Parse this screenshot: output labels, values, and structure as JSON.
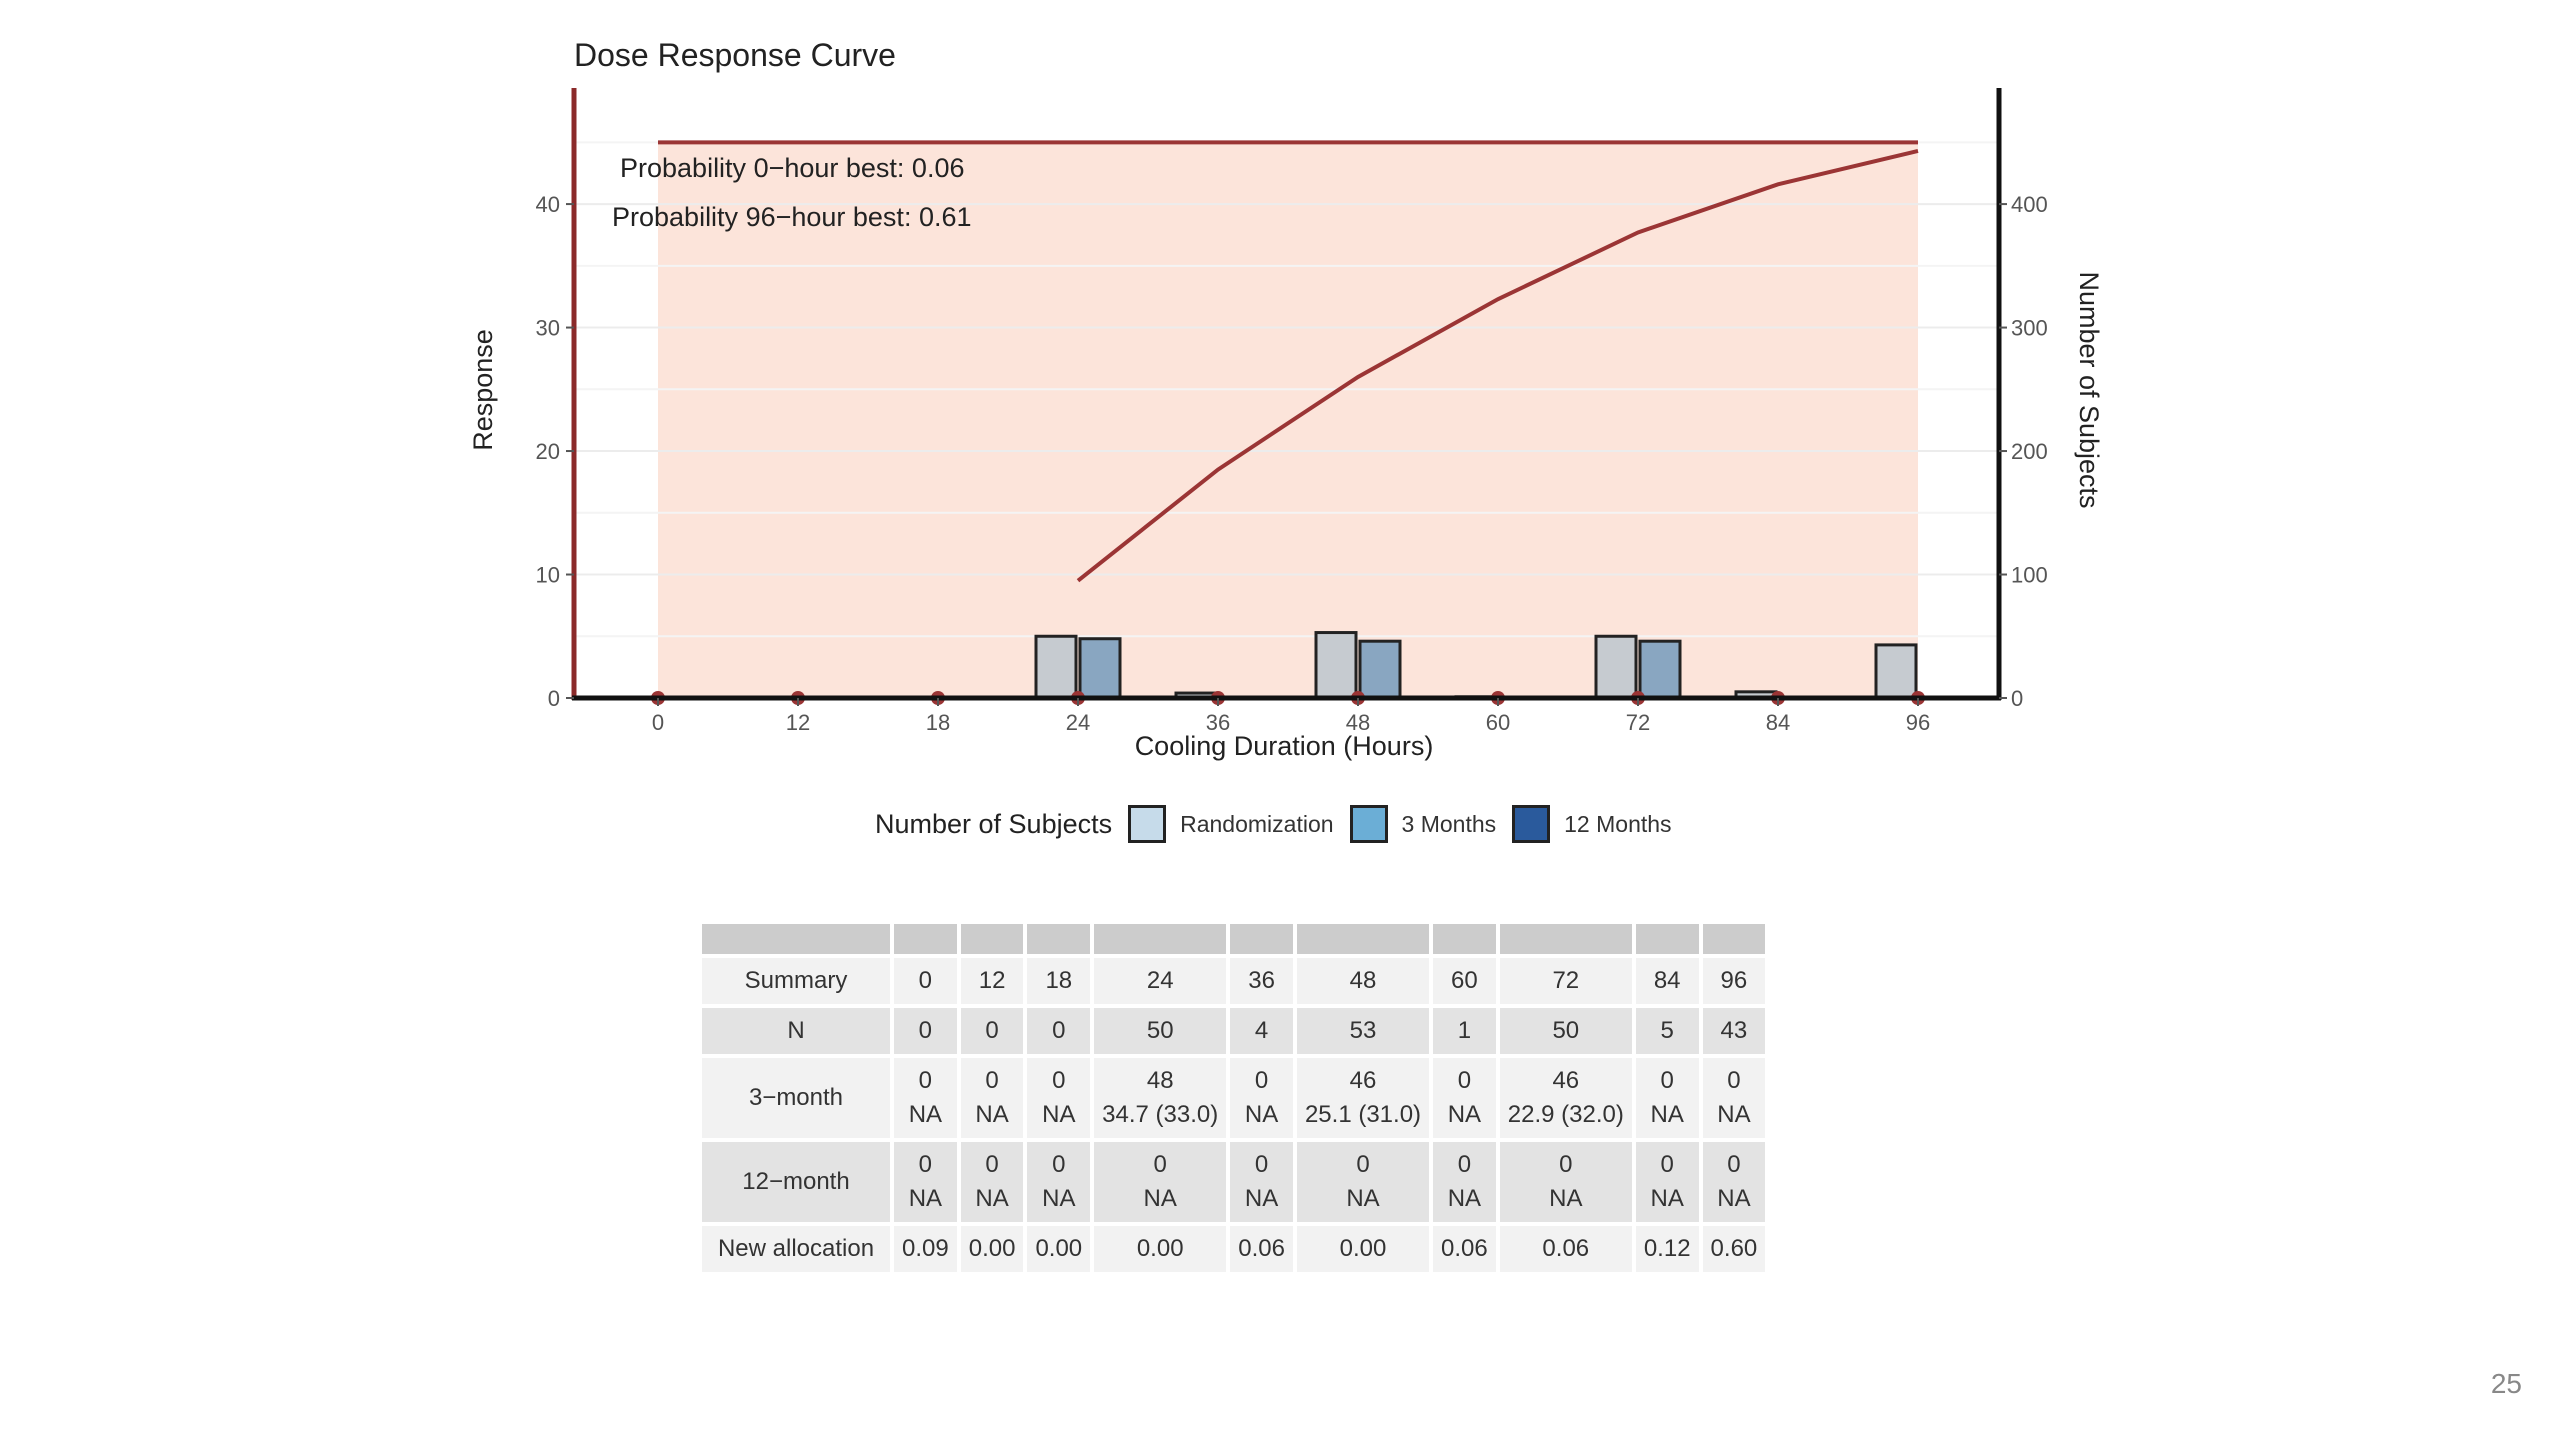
{
  "chart_data": {
    "type": "bar+line",
    "title": "Dose Response Curve",
    "xlabel": "Cooling Duration (Hours)",
    "ylabel": "Response",
    "y2label": "Number of Subjects",
    "categories": [
      "0",
      "12",
      "18",
      "24",
      "36",
      "48",
      "60",
      "72",
      "84",
      "96"
    ],
    "ylim": [
      0,
      49.4
    ],
    "y_ticks": [
      0,
      10,
      20,
      30,
      40
    ],
    "y2lim": [
      0,
      494
    ],
    "y2_ticks": [
      0,
      100,
      200,
      300,
      400
    ],
    "shaded_band": {
      "x_from": "0",
      "x_to": "96",
      "y_from": 0,
      "y_to": 45
    },
    "annotations": [
      "Probability 0−hour best: 0.06",
      "Probability 96−hour best: 0.61"
    ],
    "series": [
      {
        "name": "Randomization",
        "kind": "bar",
        "axis": "y2",
        "color": "#c6cbd0",
        "values": [
          0,
          0,
          0,
          50,
          4,
          53,
          1,
          50,
          5,
          43
        ]
      },
      {
        "name": "3 Months",
        "kind": "bar",
        "axis": "y2",
        "color": "#89a6c1",
        "values": [
          0,
          0,
          0,
          48,
          0,
          46,
          0,
          46,
          0,
          0
        ]
      },
      {
        "name": "12 Months",
        "kind": "bar",
        "axis": "y2",
        "color": "#2a5a9c",
        "values": [
          0,
          0,
          0,
          0,
          0,
          0,
          0,
          0,
          0,
          0
        ]
      },
      {
        "name": "Response",
        "kind": "line",
        "axis": "y",
        "color": "#9b3535",
        "x": [
          "24",
          "36",
          "48",
          "60",
          "72",
          "84",
          "96"
        ],
        "values": [
          9.5,
          18.5,
          26.0,
          32.3,
          37.7,
          41.6,
          44.3
        ]
      }
    ],
    "legend": {
      "title": "Number of Subjects",
      "position": "bottom",
      "items": [
        {
          "label": "Randomization",
          "color": "#c6dbea"
        },
        {
          "label": "3 Months",
          "color": "#6baed6"
        },
        {
          "label": "12 Months",
          "color": "#2a5a9c"
        }
      ]
    }
  },
  "table": {
    "headers": [
      "Summary",
      "0",
      "12",
      "18",
      "24",
      "36",
      "48",
      "60",
      "72",
      "84",
      "96"
    ],
    "rows": [
      {
        "label": "N",
        "cells": [
          [
            "0"
          ],
          [
            "0"
          ],
          [
            "0"
          ],
          [
            "50"
          ],
          [
            "4"
          ],
          [
            "53"
          ],
          [
            "1"
          ],
          [
            "50"
          ],
          [
            "5"
          ],
          [
            "43"
          ]
        ]
      },
      {
        "label": "3−month",
        "cells": [
          [
            "0",
            "NA"
          ],
          [
            "0",
            "NA"
          ],
          [
            "0",
            "NA"
          ],
          [
            "48",
            "34.7 (33.0)"
          ],
          [
            "0",
            "NA"
          ],
          [
            "46",
            "25.1 (31.0)"
          ],
          [
            "0",
            "NA"
          ],
          [
            "46",
            "22.9 (32.0)"
          ],
          [
            "0",
            "NA"
          ],
          [
            "0",
            "NA"
          ]
        ]
      },
      {
        "label": "12−month",
        "cells": [
          [
            "0",
            "NA"
          ],
          [
            "0",
            "NA"
          ],
          [
            "0",
            "NA"
          ],
          [
            "0",
            "NA"
          ],
          [
            "0",
            "NA"
          ],
          [
            "0",
            "NA"
          ],
          [
            "0",
            "NA"
          ],
          [
            "0",
            "NA"
          ],
          [
            "0",
            "NA"
          ],
          [
            "0",
            "NA"
          ]
        ]
      },
      {
        "label": "New allocation",
        "cells": [
          [
            "0.09"
          ],
          [
            "0.00"
          ],
          [
            "0.00"
          ],
          [
            "0.00"
          ],
          [
            "0.06"
          ],
          [
            "0.00"
          ],
          [
            "0.06"
          ],
          [
            "0.06"
          ],
          [
            "0.12"
          ],
          [
            "0.60"
          ]
        ]
      }
    ]
  },
  "page_number": "25"
}
